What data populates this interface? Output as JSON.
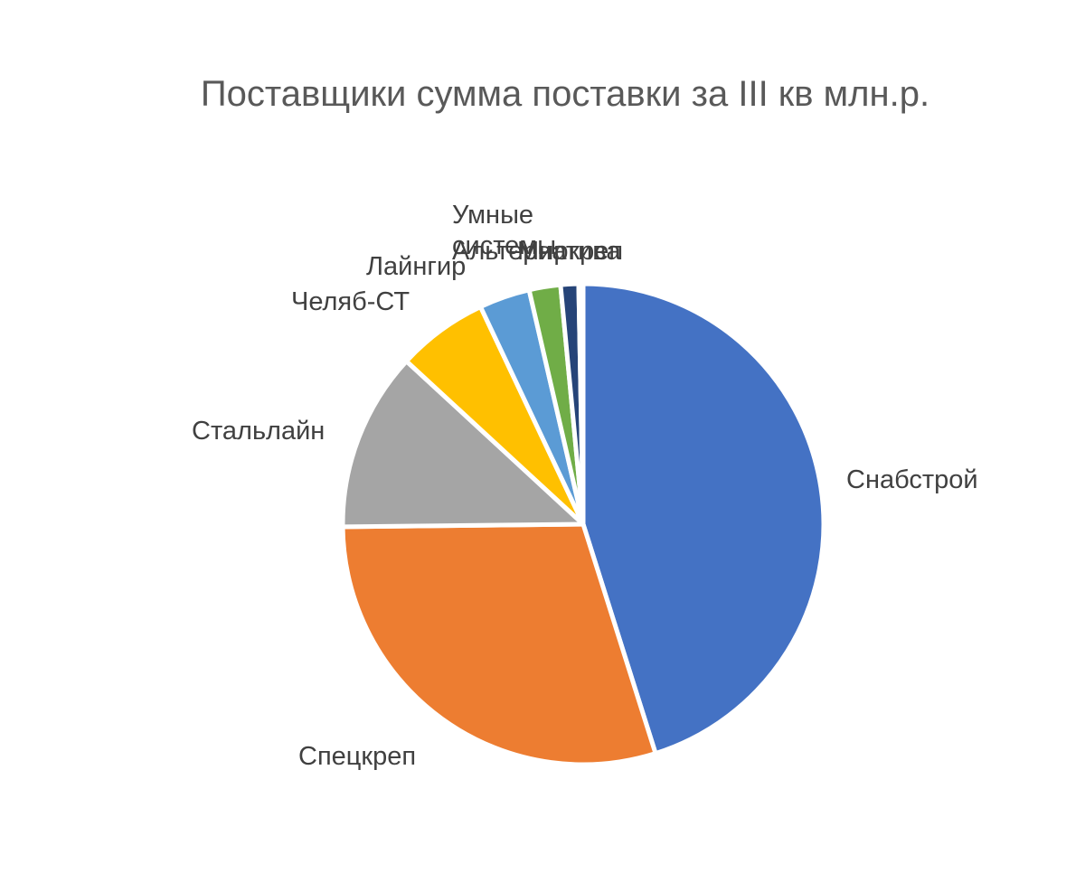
{
  "chart_data": {
    "type": "pie",
    "title": "Поставщики сумма поставки за III кв млн.р.",
    "categories": [
      "Снабстрой",
      "Спецкреп",
      "Стальлайн",
      "Челяб-СТ",
      "Лайнгир",
      "Умные системы",
      "Альтернатива",
      "Миркреп"
    ],
    "values": [
      45.0,
      29.6,
      12.0,
      6.1,
      3.4,
      2.1,
      1.2,
      0.3
    ],
    "colors": [
      "#4472C4",
      "#ED7D31",
      "#A5A5A5",
      "#FFC000",
      "#5B9BD5",
      "#70AD47",
      "#264478",
      "#9E480E"
    ],
    "legend": "none",
    "data_labels": "category names outside"
  }
}
